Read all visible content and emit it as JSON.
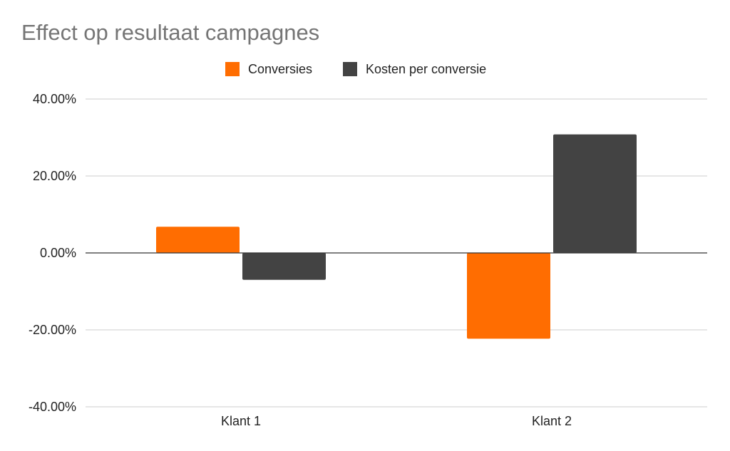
{
  "chart_data": {
    "type": "bar",
    "title": "Effect op resultaat campagnes",
    "categories": [
      "Klant 1",
      "Klant 2"
    ],
    "series": [
      {
        "name": "Conversies",
        "color": "#ff6d01",
        "values": [
          6.8,
          -22.3
        ]
      },
      {
        "name": "Kosten per conversie",
        "color": "#434343",
        "values": [
          -7.0,
          30.8
        ]
      }
    ],
    "ylim": [
      -40,
      40
    ],
    "yticks": [
      -40,
      -20,
      0,
      20,
      40
    ],
    "ytick_labels": [
      "-40.00%",
      "-20.00%",
      "0.00%",
      "20.00%",
      "40.00%"
    ],
    "xlabel": "",
    "ylabel": "",
    "grid": true,
    "legend_position": "top-center"
  }
}
